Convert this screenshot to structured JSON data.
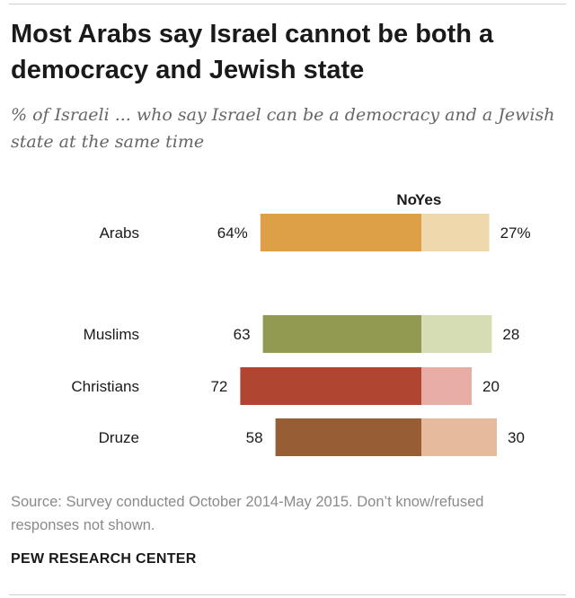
{
  "title": "Most Arabs say Israel cannot be both a democracy and Jewish state",
  "subtitle": "% of Israeli ... who say Israel can be a democracy and a Jewish state at the same time",
  "source": "Source: Survey conducted October 2014-May 2015. Don’t know/refused responses not shown.",
  "credit": "PEW RESEARCH CENTER",
  "chart_data": {
    "type": "bar",
    "orientation": "horizontal-diverging",
    "title": "Most Arabs say Israel cannot be both a democracy and Jewish state",
    "subtitle": "% of Israeli ... who say Israel can be a democracy and a Jewish state at the same time",
    "series_labels": {
      "no": "No",
      "yes": "Yes"
    },
    "categories": [
      "Arabs",
      "Muslims",
      "Christians",
      "Druze"
    ],
    "rows": [
      {
        "category": "Arabs",
        "no": 64,
        "yes": 27,
        "no_label": "64%",
        "yes_label": "27%",
        "no_color": "#dea047",
        "yes_color": "#f0d8ad"
      },
      {
        "category": "Muslims",
        "no": 63,
        "yes": 28,
        "no_label": "63",
        "yes_label": "28",
        "no_color": "#929a52",
        "yes_color": "#d6dcb3"
      },
      {
        "category": "Christians",
        "no": 72,
        "yes": 20,
        "no_label": "72",
        "yes_label": "20",
        "no_color": "#b04632",
        "yes_color": "#e8aea5"
      },
      {
        "category": "Druze",
        "no": 58,
        "yes": 30,
        "no_label": "58",
        "yes_label": "30",
        "no_color": "#975d34",
        "yes_color": "#e6bb9d"
      }
    ],
    "grid": false,
    "legend": "top"
  }
}
